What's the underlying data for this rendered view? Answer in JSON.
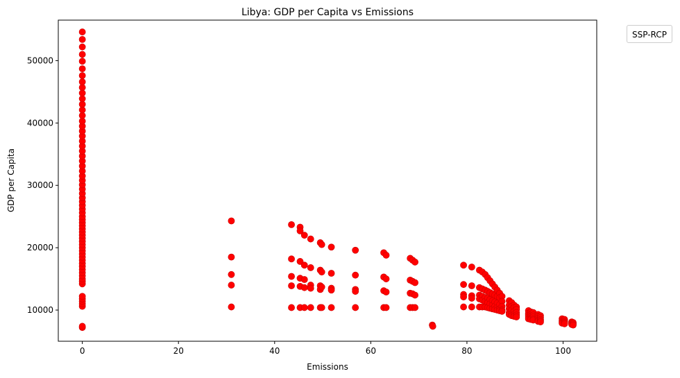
{
  "chart_data": {
    "type": "scatter",
    "title": "Libya: GDP per Capita vs Emissions",
    "xlabel": "Emissions",
    "ylabel": "GDP per Capita",
    "xlim": [
      -5,
      107
    ],
    "ylim": [
      5000,
      56500
    ],
    "x_ticks": [
      0,
      20,
      40,
      60,
      80,
      100
    ],
    "y_ticks": [
      10000,
      20000,
      30000,
      40000,
      50000
    ],
    "x_tick_labels": [
      "0",
      "20",
      "40",
      "60",
      "80",
      "100"
    ],
    "y_tick_labels": [
      "10000",
      "20000",
      "30000",
      "40000",
      "50000"
    ],
    "legend_title": "SSP-RCP",
    "legend_position": "outside upper right",
    "grid": false,
    "marker_color": "#ff0000",
    "marker_edge_color": "#cc0000",
    "series": [
      {
        "points": [
          [
            0,
            7200
          ],
          [
            0,
            7400
          ],
          [
            0,
            10600
          ],
          [
            0,
            11000
          ],
          [
            0,
            11400
          ],
          [
            0,
            11800
          ],
          [
            0,
            12200
          ],
          [
            0,
            14200
          ],
          [
            0,
            14600
          ],
          [
            0,
            15000
          ],
          [
            0,
            15500
          ],
          [
            0,
            16000
          ],
          [
            0,
            16500
          ],
          [
            0,
            17000
          ],
          [
            0,
            17500
          ],
          [
            0,
            18000
          ],
          [
            0,
            18500
          ],
          [
            0,
            19000
          ],
          [
            0,
            19500
          ],
          [
            0,
            20000
          ],
          [
            0,
            20500
          ],
          [
            0,
            21000
          ],
          [
            0,
            21500
          ],
          [
            0,
            22000
          ],
          [
            0,
            22500
          ],
          [
            0,
            23000
          ],
          [
            0,
            23500
          ],
          [
            0,
            24000
          ],
          [
            0,
            24500
          ],
          [
            0,
            25000
          ],
          [
            0,
            25600
          ],
          [
            0,
            26200
          ],
          [
            0,
            26800
          ],
          [
            0,
            27400
          ],
          [
            0,
            28000
          ],
          [
            0,
            28700
          ],
          [
            0,
            29400
          ],
          [
            0,
            30100
          ],
          [
            0,
            30800
          ],
          [
            0,
            31500
          ],
          [
            0,
            32300
          ],
          [
            0,
            33100
          ],
          [
            0,
            33900
          ],
          [
            0,
            34700
          ],
          [
            0,
            35500
          ],
          [
            0,
            36300
          ],
          [
            0,
            37100
          ],
          [
            0,
            37900
          ],
          [
            0,
            38700
          ],
          [
            0,
            39500
          ],
          [
            0,
            40300
          ],
          [
            0,
            41200
          ],
          [
            0,
            42100
          ],
          [
            0,
            43000
          ],
          [
            0,
            43900
          ],
          [
            0,
            44800
          ],
          [
            0,
            45700
          ],
          [
            0,
            46600
          ],
          [
            0,
            47600
          ],
          [
            0,
            48700
          ],
          [
            0,
            49900
          ],
          [
            0,
            51000
          ],
          [
            0,
            52200
          ],
          [
            0,
            53400
          ],
          [
            0,
            54600
          ],
          [
            31,
            24300
          ],
          [
            31,
            18500
          ],
          [
            31,
            15700
          ],
          [
            31,
            14000
          ],
          [
            31,
            10500
          ],
          [
            43.5,
            23700
          ],
          [
            43.5,
            18200
          ],
          [
            43.5,
            15400
          ],
          [
            43.5,
            13900
          ],
          [
            43.5,
            10400
          ],
          [
            45.3,
            23300
          ],
          [
            45.3,
            22700
          ],
          [
            45.3,
            17800
          ],
          [
            45.3,
            15100
          ],
          [
            45.3,
            13800
          ],
          [
            45.3,
            10400
          ],
          [
            46.2,
            22000
          ],
          [
            46.2,
            17200
          ],
          [
            46.2,
            14900
          ],
          [
            46.2,
            13600
          ],
          [
            46.2,
            10400
          ],
          [
            47.5,
            21400
          ],
          [
            47.5,
            16800
          ],
          [
            47.5,
            14000
          ],
          [
            47.5,
            13500
          ],
          [
            47.5,
            10400
          ],
          [
            49.5,
            20800
          ],
          [
            49.5,
            16400
          ],
          [
            49.5,
            13900
          ],
          [
            49.5,
            13300
          ],
          [
            49.5,
            10400
          ],
          [
            49.8,
            20500
          ],
          [
            49.8,
            16100
          ],
          [
            49.8,
            13700
          ],
          [
            49.8,
            10400
          ],
          [
            51.8,
            20100
          ],
          [
            51.8,
            15900
          ],
          [
            51.8,
            13500
          ],
          [
            51.8,
            13200
          ],
          [
            51.8,
            10400
          ],
          [
            56.8,
            19600
          ],
          [
            56.8,
            15600
          ],
          [
            56.8,
            13300
          ],
          [
            56.8,
            13000
          ],
          [
            56.8,
            10400
          ],
          [
            62.7,
            19200
          ],
          [
            62.7,
            15300
          ],
          [
            62.7,
            13100
          ],
          [
            62.7,
            10400
          ],
          [
            63.2,
            18800
          ],
          [
            63.2,
            15000
          ],
          [
            63.2,
            12900
          ],
          [
            63.2,
            10400
          ],
          [
            68.2,
            18300
          ],
          [
            68.2,
            14800
          ],
          [
            68.2,
            12700
          ],
          [
            68.2,
            10400
          ],
          [
            68.7,
            18000
          ],
          [
            68.7,
            14600
          ],
          [
            68.7,
            12600
          ],
          [
            68.7,
            10400
          ],
          [
            69.2,
            17700
          ],
          [
            69.2,
            14400
          ],
          [
            69.2,
            12400
          ],
          [
            69.2,
            10400
          ],
          [
            72.8,
            7600
          ],
          [
            72.9,
            7400
          ],
          [
            79.3,
            17200
          ],
          [
            79.3,
            14100
          ],
          [
            79.3,
            12500
          ],
          [
            79.3,
            12100
          ],
          [
            79.3,
            10500
          ],
          [
            81,
            16900
          ],
          [
            81,
            13900
          ],
          [
            81,
            12300
          ],
          [
            81,
            11900
          ],
          [
            81,
            10500
          ],
          [
            82.6,
            16400
          ],
          [
            82.6,
            13600
          ],
          [
            82.6,
            12400
          ],
          [
            82.6,
            11800
          ],
          [
            82.6,
            10500
          ],
          [
            83.2,
            16100
          ],
          [
            83.2,
            13400
          ],
          [
            83.2,
            12200
          ],
          [
            83.2,
            11600
          ],
          [
            83.2,
            10500
          ],
          [
            83.8,
            15700
          ],
          [
            83.8,
            13200
          ],
          [
            83.8,
            12000
          ],
          [
            83.8,
            11400
          ],
          [
            83.8,
            10500
          ],
          [
            84.3,
            15200
          ],
          [
            84.3,
            13000
          ],
          [
            84.3,
            11900
          ],
          [
            84.3,
            11200
          ],
          [
            84.3,
            10400
          ],
          [
            84.8,
            14700
          ],
          [
            84.8,
            12800
          ],
          [
            84.8,
            11700
          ],
          [
            84.8,
            11000
          ],
          [
            84.8,
            10300
          ],
          [
            85.3,
            14200
          ],
          [
            85.3,
            12600
          ],
          [
            85.3,
            11500
          ],
          [
            85.3,
            10800
          ],
          [
            85.3,
            10200
          ],
          [
            85.8,
            13700
          ],
          [
            85.8,
            12400
          ],
          [
            85.8,
            11300
          ],
          [
            85.8,
            10600
          ],
          [
            85.8,
            10100
          ],
          [
            86.3,
            13200
          ],
          [
            86.3,
            12200
          ],
          [
            86.3,
            11100
          ],
          [
            86.3,
            10400
          ],
          [
            86.3,
            10000
          ],
          [
            86.8,
            12700
          ],
          [
            86.8,
            12000
          ],
          [
            86.8,
            10900
          ],
          [
            86.8,
            10200
          ],
          [
            86.8,
            9900
          ],
          [
            87.3,
            12200
          ],
          [
            87.3,
            11400
          ],
          [
            87.3,
            10600
          ],
          [
            87.3,
            10000
          ],
          [
            87.3,
            9800
          ],
          [
            88.8,
            11500
          ],
          [
            88.8,
            10800
          ],
          [
            88.8,
            10200
          ],
          [
            88.8,
            9600
          ],
          [
            88.8,
            9300
          ],
          [
            89.3,
            11200
          ],
          [
            89.3,
            10600
          ],
          [
            89.3,
            10000
          ],
          [
            89.3,
            9400
          ],
          [
            89.3,
            9100
          ],
          [
            89.8,
            10800
          ],
          [
            89.8,
            10400
          ],
          [
            89.8,
            9800
          ],
          [
            89.8,
            9300
          ],
          [
            89.8,
            9000
          ],
          [
            90.3,
            10500
          ],
          [
            90.3,
            10100
          ],
          [
            90.3,
            9600
          ],
          [
            90.3,
            9200
          ],
          [
            90.3,
            8900
          ],
          [
            92.8,
            9900
          ],
          [
            92.8,
            9500
          ],
          [
            92.8,
            9200
          ],
          [
            92.8,
            8900
          ],
          [
            92.8,
            8600
          ],
          [
            93.3,
            9700
          ],
          [
            93.3,
            9300
          ],
          [
            93.3,
            9000
          ],
          [
            93.3,
            8700
          ],
          [
            93.3,
            8500
          ],
          [
            93.8,
            9600
          ],
          [
            93.8,
            9200
          ],
          [
            93.8,
            8900
          ],
          [
            93.8,
            8600
          ],
          [
            93.8,
            8400
          ],
          [
            94.8,
            9300
          ],
          [
            94.8,
            9000
          ],
          [
            94.8,
            8700
          ],
          [
            94.8,
            8400
          ],
          [
            94.8,
            8200
          ],
          [
            95.3,
            9100
          ],
          [
            95.3,
            8800
          ],
          [
            95.3,
            8500
          ],
          [
            95.3,
            8300
          ],
          [
            95.3,
            8100
          ],
          [
            99.8,
            8600
          ],
          [
            99.8,
            8300
          ],
          [
            99.8,
            8100
          ],
          [
            99.8,
            7900
          ],
          [
            100.3,
            8500
          ],
          [
            100.3,
            8200
          ],
          [
            100.3,
            8000
          ],
          [
            100.3,
            7800
          ],
          [
            101.8,
            8100
          ],
          [
            101.8,
            7900
          ],
          [
            101.8,
            7700
          ],
          [
            102.1,
            8000
          ],
          [
            102.1,
            7800
          ],
          [
            102.1,
            7600
          ]
        ]
      }
    ]
  }
}
